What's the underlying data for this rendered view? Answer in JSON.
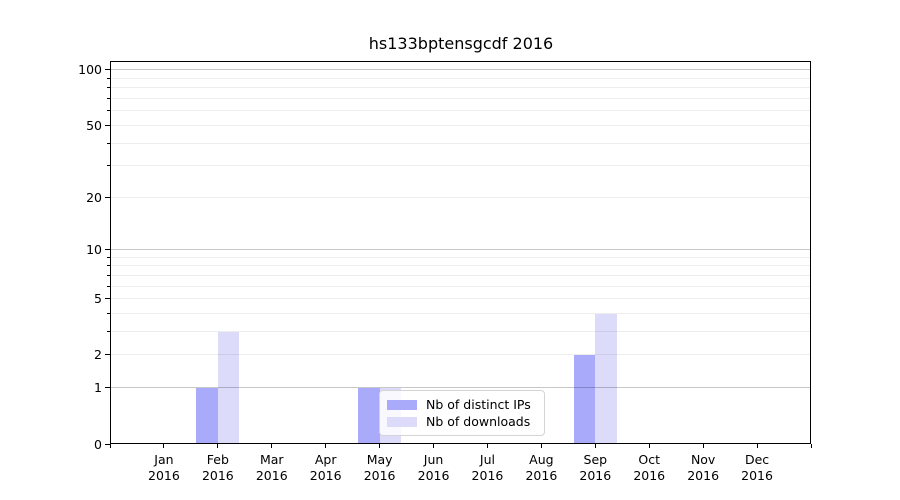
{
  "chart_data": {
    "type": "bar",
    "title": "hs133bptensgcdf 2016",
    "categories": [
      {
        "month": "Jan",
        "year": "2016"
      },
      {
        "month": "Feb",
        "year": "2016"
      },
      {
        "month": "Mar",
        "year": "2016"
      },
      {
        "month": "Apr",
        "year": "2016"
      },
      {
        "month": "May",
        "year": "2016"
      },
      {
        "month": "Jun",
        "year": "2016"
      },
      {
        "month": "Jul",
        "year": "2016"
      },
      {
        "month": "Aug",
        "year": "2016"
      },
      {
        "month": "Sep",
        "year": "2016"
      },
      {
        "month": "Oct",
        "year": "2016"
      },
      {
        "month": "Nov",
        "year": "2016"
      },
      {
        "month": "Dec",
        "year": "2016"
      }
    ],
    "series": [
      {
        "name": "Nb of distinct IPs",
        "color": "#aaaafa",
        "values": [
          0,
          1,
          0,
          0,
          1,
          0,
          0,
          0,
          2,
          0,
          0,
          0
        ]
      },
      {
        "name": "Nb of downloads",
        "color": "#dcdcfa",
        "values": [
          0,
          3,
          0,
          0,
          1,
          0,
          0,
          0,
          4,
          0,
          0,
          0
        ]
      }
    ],
    "y_axis": {
      "scale": "log1p",
      "tick_values": [
        0,
        1,
        2,
        5,
        10,
        20,
        50,
        100
      ],
      "tick_labels": [
        "0",
        "1",
        "2",
        "5",
        "10",
        "20",
        "50",
        "100"
      ],
      "max": 111.85,
      "major_grid_values": [
        1,
        10,
        100
      ],
      "minor_grid_values": [
        2,
        3,
        4,
        5,
        6,
        7,
        8,
        9,
        20,
        30,
        40,
        50,
        60,
        70,
        80,
        90
      ]
    },
    "legend": {
      "position": "lower center"
    },
    "colors": {
      "grid_major": "rgba(0,0,0,0.22)",
      "grid_minor": "rgba(0,0,0,0.07)",
      "axis": "#000000",
      "background": "#ffffff"
    }
  }
}
